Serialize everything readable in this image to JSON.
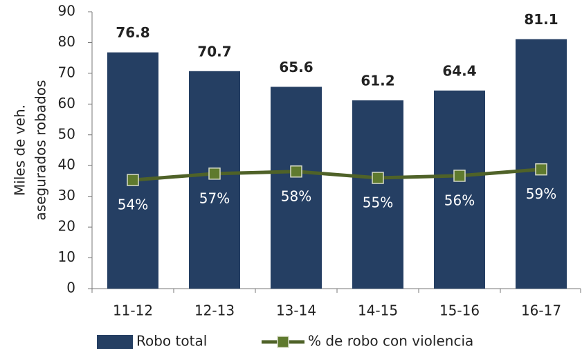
{
  "chart_data": {
    "type": "bar_line",
    "y_label_lines": [
      "Miles de veh.",
      "asegurados robados"
    ],
    "categories": [
      "11-12",
      "12-13",
      "13-14",
      "14-15",
      "15-16",
      "16-17"
    ],
    "series": [
      {
        "name": "Robo total",
        "type": "bar",
        "color": "#253f63",
        "values": [
          76.8,
          70.7,
          65.6,
          61.2,
          64.4,
          81.1
        ]
      },
      {
        "name": "% de robo con violencia",
        "type": "line",
        "axis": "y2",
        "color": "#4f6228",
        "marker_color": "#5f7a2e",
        "values": [
          54,
          57,
          58,
          55,
          56,
          59
        ],
        "value_labels": [
          "54%",
          "57%",
          "58%",
          "55%",
          "56%",
          "59%"
        ]
      }
    ],
    "ylim": [
      0,
      90
    ],
    "yticks": [
      0,
      10,
      20,
      30,
      40,
      50,
      60,
      70,
      80,
      90
    ],
    "y2lim": [
      3,
      133
    ],
    "legend": "bottom"
  }
}
